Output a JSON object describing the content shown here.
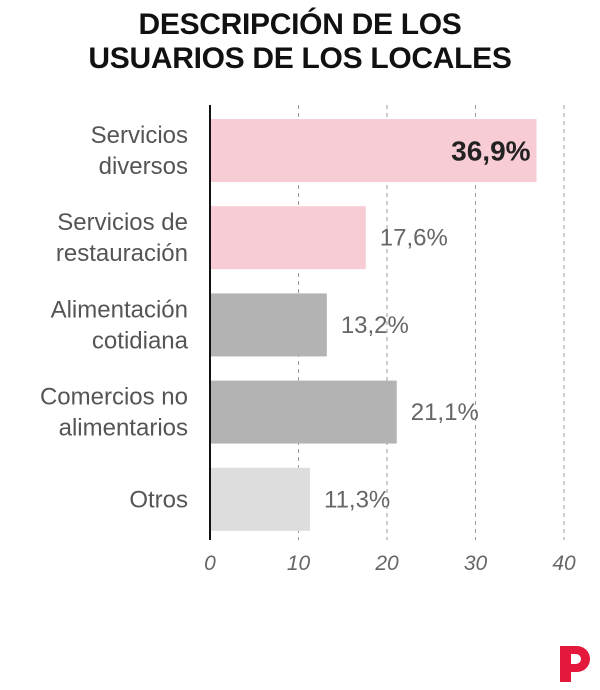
{
  "chart_data": {
    "type": "bar",
    "orientation": "horizontal",
    "title_lines": [
      "DESCRIPCIÓN DE LOS",
      "USUARIOS DE LOS LOCALES"
    ],
    "categories": [
      [
        "Servicios",
        "diversos"
      ],
      [
        "Servicios de",
        "restauración"
      ],
      [
        "Alimentación",
        "cotidiana"
      ],
      [
        "Comercios no",
        "alimentarios"
      ],
      [
        "Otros"
      ]
    ],
    "values": [
      36.9,
      17.6,
      13.2,
      21.1,
      11.3
    ],
    "value_labels": [
      "36,9%",
      "17,6%",
      "13,2%",
      "21,1%",
      "11,3%"
    ],
    "colors": [
      "#f8ccd4",
      "#f8ccd4",
      "#b3b3b3",
      "#b3b3b3",
      "#dddddd"
    ],
    "highlight_index": 0,
    "xlim": [
      0,
      40
    ],
    "xticks": [
      0,
      10,
      20,
      30,
      40
    ],
    "xtick_labels": [
      "0",
      "10",
      "20",
      "30",
      "40"
    ],
    "grid": "vertical-dashed",
    "xlabel": "",
    "ylabel": ""
  },
  "brand": {
    "logo_icon": "brand-p-logo-icon",
    "logo_color": "#e3183b"
  }
}
